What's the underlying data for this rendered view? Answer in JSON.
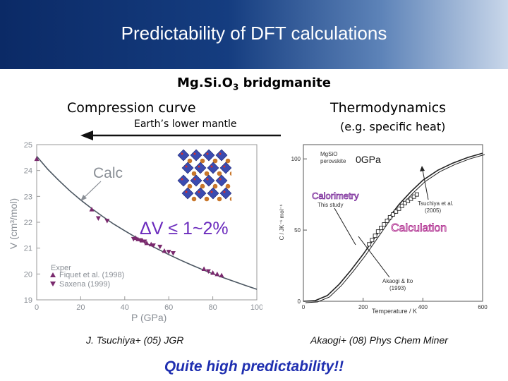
{
  "slide": {
    "title": "Predictability of DFT calculations",
    "material_main": "Mg.Si.O",
    "material_sub": "3",
    "material_suffix": " bridgmanite",
    "left_heading": "Compression curve",
    "left_subheading": "Earth’s lower mantle",
    "right_heading": "Thermodynamics",
    "right_subheading": "(e.g. specific heat)",
    "left_citation": "J. Tsuchiya+ (05) JGR",
    "right_citation": "Akaogi+ (08) Phys Chem Miner",
    "conclusion": "Quite high predictability!!"
  },
  "chart_data": [
    {
      "type": "scatter",
      "xlabel": "P (GPa)",
      "ylabel": "V (cm³/mol)",
      "xlim": [
        0,
        100
      ],
      "ylim": [
        19,
        25
      ],
      "xticks": [
        "0",
        "20",
        "40",
        "60",
        "80",
        "100"
      ],
      "yticks": [
        "19",
        "20",
        "21",
        "22",
        "23",
        "24",
        "25"
      ],
      "annotation_calc": "Calc",
      "annotation_dv": "ΔV ≤ 1~2%",
      "legend_title": "Exper",
      "series": [
        {
          "name": "Calc",
          "kind": "line",
          "color": "#4a5560",
          "x": [
            0,
            5,
            10,
            15,
            20,
            25,
            30,
            35,
            40,
            45,
            50,
            55,
            60,
            65,
            70,
            75,
            80,
            85,
            90,
            95,
            100
          ],
          "y": [
            24.55,
            24.05,
            23.62,
            23.22,
            22.86,
            22.53,
            22.22,
            21.93,
            21.67,
            21.42,
            21.18,
            20.96,
            20.75,
            20.55,
            20.36,
            20.18,
            20.01,
            19.85,
            19.7,
            19.55,
            19.41
          ]
        },
        {
          "name": "Fiquet et al. (1998)",
          "kind": "triangle-up",
          "color": "#7a2a6e",
          "x": [
            0,
            25,
            45,
            46,
            48,
            50,
            52,
            58,
            76,
            80,
            82,
            84
          ],
          "y": [
            24.45,
            22.5,
            21.4,
            21.35,
            21.3,
            21.2,
            21.15,
            20.9,
            20.2,
            20.05,
            20.0,
            19.95
          ]
        },
        {
          "name": "Saxena (1999)",
          "kind": "triangle-down",
          "color": "#7a2a6e",
          "x": [
            28,
            32,
            44,
            47,
            49,
            53,
            56,
            60,
            62,
            78
          ],
          "y": [
            22.15,
            22.05,
            21.35,
            21.3,
            21.25,
            21.1,
            21.05,
            20.85,
            20.8,
            20.1
          ]
        }
      ]
    },
    {
      "type": "line",
      "xlabel": "Temperature / K",
      "ylabel": "C / JK⁻¹ mol⁻¹",
      "xlim": [
        0,
        600
      ],
      "ylim": [
        0,
        110
      ],
      "xticks": [
        "0",
        "200",
        "400",
        "600"
      ],
      "yticks": [
        "0",
        "50",
        "100"
      ],
      "panel_label_1": "MgSiO",
      "panel_label_2": "perovskite",
      "pressure_label": "0GPa",
      "calorimetry_label": "Calorimetry",
      "this_study_label": "This study",
      "tsuchiya_label_1": "Tsuchiya et al.",
      "tsuchiya_label_2": "(2005)",
      "akaogi_label_1": "Akaogi & Ito",
      "akaogi_label_2": "(1993)",
      "calculation_label": "Calculation",
      "series": [
        {
          "name": "Calculation",
          "kind": "line",
          "color": "#222222",
          "x": [
            0,
            40,
            80,
            120,
            160,
            200,
            240,
            280,
            320,
            360,
            400,
            450,
            500,
            550,
            600
          ],
          "y": [
            0,
            0.5,
            4,
            12,
            22,
            33,
            45,
            57,
            68,
            77,
            85,
            92,
            97,
            101,
            104
          ]
        },
        {
          "name": "Calorimetry",
          "kind": "square",
          "color": "#222222",
          "x": [
            220,
            230,
            240,
            250,
            260,
            270,
            280,
            290,
            300,
            310,
            320,
            330,
            340,
            350,
            360,
            370,
            380
          ],
          "y": [
            40,
            43,
            46,
            49,
            51.5,
            54,
            56.5,
            59,
            61,
            63,
            65,
            67,
            69,
            70.5,
            72,
            73.5,
            75
          ]
        }
      ]
    }
  ]
}
